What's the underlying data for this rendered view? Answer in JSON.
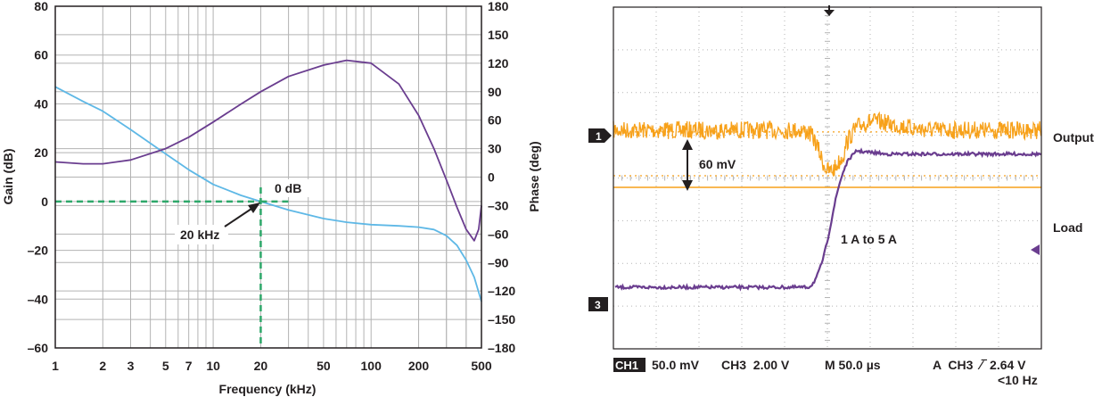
{
  "chart_data": [
    {
      "type": "line",
      "title": "",
      "xlabel": "Frequency (kHz)",
      "ylabel": "Gain (dB)",
      "y2label": "Phase (deg)",
      "xscale": "log",
      "xlim": [
        1,
        500
      ],
      "ylim": [
        -60,
        80
      ],
      "y2lim": [
        -180,
        180
      ],
      "x_ticks": [
        1,
        2,
        3,
        5,
        7,
        10,
        20,
        50,
        100,
        200,
        500
      ],
      "x_tick_labels": [
        "1",
        "2",
        "3",
        "5",
        "7",
        "10",
        "20",
        "50",
        "100",
        "200",
        "500"
      ],
      "y_ticks": [
        80,
        60,
        40,
        20,
        0,
        -20,
        -40,
        -60
      ],
      "y_tick_labels": [
        "80",
        "60",
        "40",
        "20",
        "0",
        "–20",
        "–40",
        "–60"
      ],
      "y2_ticks": [
        180,
        150,
        120,
        90,
        60,
        30,
        0,
        -30,
        -60,
        -90,
        -120,
        -150,
        -180
      ],
      "y2_tick_labels": [
        "180",
        "150",
        "120",
        "90",
        "60",
        "30",
        "0",
        "–30",
        "–60",
        "–90",
        "–120",
        "–150",
        "–180"
      ],
      "grid": true,
      "colors": {
        "gain": "#5eb8e6",
        "phase": "#6a3d8f",
        "marker": "#2ea86a",
        "axis": "#231f20",
        "grid": "#b3b3b3"
      },
      "series": [
        {
          "axis": "left",
          "color": "#5eb8e6",
          "x": [
            1,
            1.5,
            2,
            3,
            5,
            7,
            10,
            15,
            20,
            30,
            50,
            70,
            100,
            150,
            200,
            250,
            300,
            350,
            400,
            450,
            500
          ],
          "y": [
            47,
            41,
            37,
            29.5,
            19.5,
            13,
            7,
            2.5,
            0,
            -3.5,
            -7,
            -8.5,
            -9.5,
            -10,
            -10.5,
            -11.5,
            -14,
            -18,
            -24,
            -31,
            -41
          ]
        },
        {
          "axis": "right",
          "color": "#6a3d8f",
          "x": [
            1,
            1.5,
            2,
            3,
            5,
            7,
            10,
            15,
            20,
            30,
            50,
            70,
            100,
            150,
            200,
            250,
            300,
            350,
            400,
            450,
            480,
            500
          ],
          "y": [
            16,
            14,
            14,
            18,
            30,
            42,
            58,
            77,
            90,
            106,
            118,
            123,
            120,
            98,
            65,
            30,
            -3,
            -32,
            -55,
            -67,
            -55,
            -30
          ]
        }
      ],
      "annotations": [
        {
          "text": "0 dB",
          "x": 20,
          "y": 0
        },
        {
          "text": "20 kHz",
          "x": 20,
          "y": 0
        }
      ]
    },
    {
      "type": "line",
      "title": "",
      "channels": [
        {
          "name": "Output",
          "marker": "1",
          "color": "#f7a11a",
          "level": 0.64,
          "dip": 0.28
        },
        {
          "name": "Load",
          "marker": "3",
          "color": "#6a3d8f",
          "low": 0.18,
          "high": 0.57
        }
      ],
      "annotations": [
        {
          "text": "60 mV"
        },
        {
          "text": "1 A to 5 A"
        }
      ],
      "status": {
        "ch1_badge": "CH1",
        "ch1_scale": "50.0 mV",
        "ch3_scale": "CH3  2.00 V",
        "timebase": "M 50.0 µs",
        "trigger": "A  CH3  ∕‾ 2.64 V",
        "trigger_freq": "<10 Hz"
      },
      "colors": {
        "grid": "#b3b3b3",
        "output": "#f7a11a",
        "load": "#6a3d8f"
      }
    }
  ]
}
